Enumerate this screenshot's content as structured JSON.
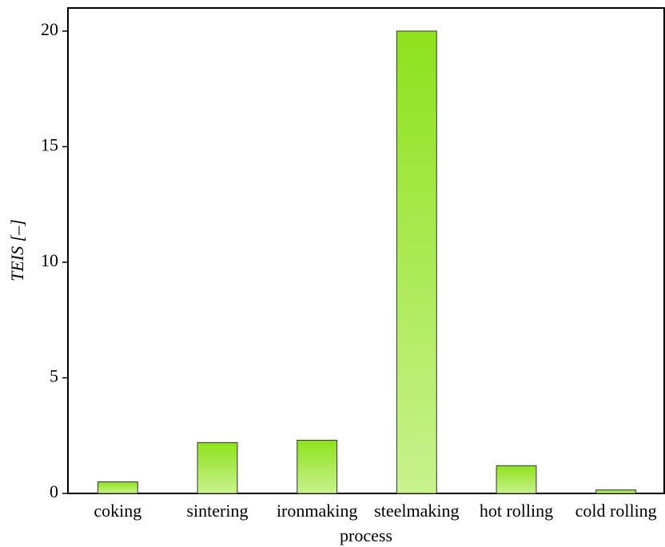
{
  "chart_data": {
    "type": "bar",
    "x_label": "process",
    "y_label": "TEIS [–]",
    "categories": [
      "coking",
      "sintering",
      "ironmaking",
      "steelmaking",
      "hot rolling",
      "cold rolling"
    ],
    "values": [
      0.5,
      2.2,
      2.3,
      20.0,
      1.2,
      0.15
    ],
    "color": "#8ee21c",
    "ylim": [
      0,
      21
    ],
    "yticks": [
      0,
      5,
      10,
      15,
      20
    ],
    "grid": false
  }
}
